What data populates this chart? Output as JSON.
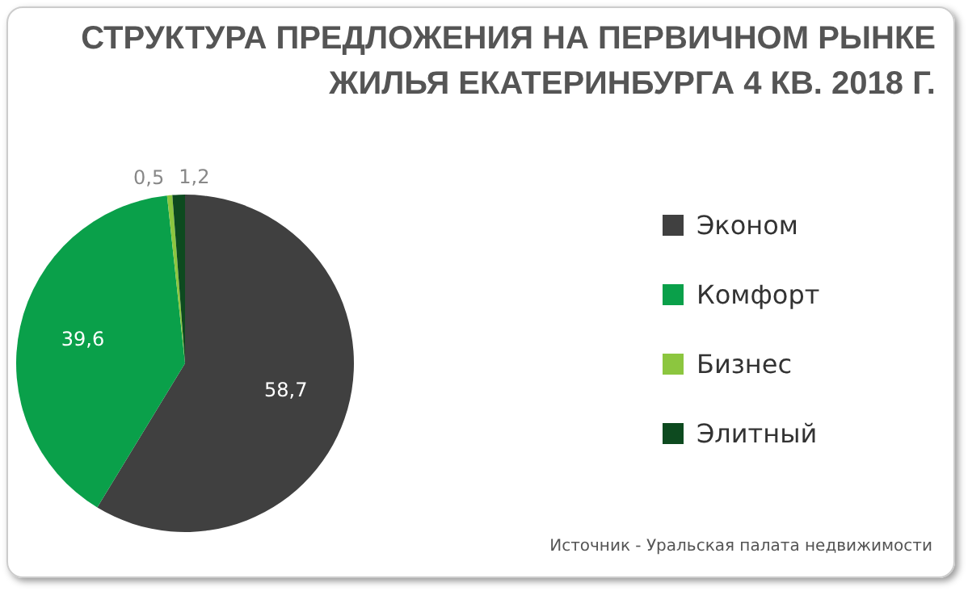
{
  "chart_data": {
    "type": "pie",
    "title": "СТРУКТУРА ПРЕДЛОЖЕНИЯ НА ПЕРВИЧНОМ РЫНКЕ ЖИЛЬЯ ЕКАТЕРИНБУРГА 4 КВ. 2018 Г.",
    "categories": [
      "Эконом",
      "Комфорт",
      "Бизнес",
      "Элитный"
    ],
    "values": [
      58.7,
      39.6,
      0.5,
      1.2
    ],
    "colors": [
      "#404040",
      "#0aa04a",
      "#8cc63f",
      "#0d4a1f"
    ],
    "value_labels": [
      "58,7",
      "39,6",
      "0,5",
      "1,2"
    ],
    "legend": "right",
    "annotations": [
      "Источник - Уральская палата недвижимости"
    ]
  }
}
